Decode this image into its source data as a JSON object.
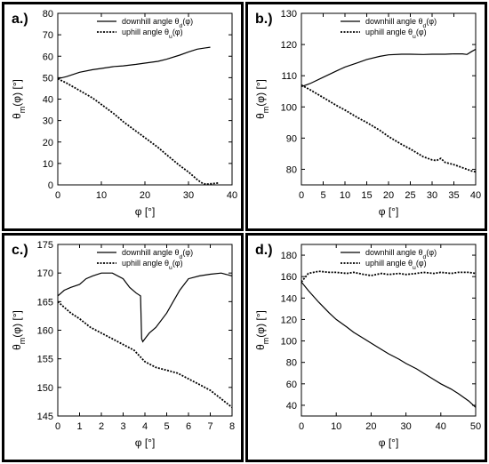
{
  "figure": {
    "background": "#ffffff"
  },
  "panels": [
    {
      "label": "a.)"
    },
    {
      "label": "b.)"
    },
    {
      "label": "c.)"
    },
    {
      "label": "d.)"
    }
  ],
  "chart_data": [
    {
      "type": "line",
      "panel": "a.)",
      "title": "",
      "xlabel": "φ [°]",
      "ylabel": "θm(φ) [°]",
      "xlim": [
        0,
        40
      ],
      "ylim": [
        0,
        80
      ],
      "xticks": [
        0,
        10,
        20,
        30,
        40
      ],
      "yticks": [
        0,
        10,
        20,
        30,
        40,
        50,
        60,
        70,
        80
      ],
      "legend": "top-right",
      "grid": false,
      "series": [
        {
          "name": "downhill angle θd(φ)",
          "style": "solid",
          "x": [
            0,
            2,
            5,
            8,
            10,
            13,
            15,
            18,
            20,
            23,
            25,
            28,
            30,
            32,
            34,
            35
          ],
          "y": [
            49.5,
            50.5,
            52.5,
            53.7,
            54.3,
            55.2,
            55.5,
            56.2,
            56.8,
            57.6,
            58.6,
            60.5,
            62.0,
            63.3,
            63.9,
            64.2
          ]
        },
        {
          "name": "uphill angle θu(φ)",
          "style": "dotted",
          "x": [
            0,
            2,
            5,
            8,
            10,
            13,
            15,
            18,
            20,
            23,
            25,
            28,
            30,
            32,
            33,
            34,
            35,
            37
          ],
          "y": [
            49.5,
            47.5,
            44.0,
            40.5,
            37.5,
            33.0,
            29.5,
            25.0,
            22.0,
            17.5,
            14.0,
            9.0,
            6.0,
            2.5,
            1.0,
            0.3,
            0.5,
            0.9
          ]
        }
      ]
    },
    {
      "type": "line",
      "panel": "b.)",
      "title": "",
      "xlabel": "φ [°]",
      "ylabel": "θm(φ) [°]",
      "xlim": [
        0,
        40
      ],
      "ylim": [
        75,
        130
      ],
      "xticks": [
        0,
        5,
        10,
        15,
        20,
        25,
        30,
        35,
        40
      ],
      "yticks": [
        80,
        90,
        100,
        110,
        120,
        130
      ],
      "legend": "top-right",
      "grid": false,
      "series": [
        {
          "name": "downhill angle θd(φ)",
          "style": "solid",
          "x": [
            0,
            2,
            5,
            8,
            10,
            13,
            15,
            18,
            20,
            23,
            25,
            28,
            30,
            33,
            35,
            37,
            38,
            39,
            40
          ],
          "y": [
            106.5,
            107.5,
            109.5,
            111.5,
            112.8,
            114.2,
            115.2,
            116.2,
            116.7,
            116.9,
            116.9,
            116.8,
            116.9,
            116.9,
            117.0,
            117.0,
            116.8,
            117.7,
            118.5
          ]
        },
        {
          "name": "uphill angle θu(φ)",
          "style": "dotted",
          "x": [
            0,
            2,
            5,
            8,
            10,
            13,
            15,
            18,
            20,
            23,
            25,
            28,
            30,
            31,
            32,
            33,
            35,
            37,
            39,
            40
          ],
          "y": [
            107.0,
            105.5,
            103.0,
            100.5,
            99.0,
            96.5,
            95.0,
            92.5,
            90.5,
            88.0,
            86.5,
            84.0,
            83.0,
            82.8,
            83.5,
            82.2,
            81.5,
            80.5,
            79.5,
            79.2
          ]
        }
      ]
    },
    {
      "type": "line",
      "panel": "c.)",
      "title": "",
      "xlabel": "φ [°]",
      "ylabel": "θm(φ) [°]",
      "xlim": [
        0,
        8
      ],
      "ylim": [
        145,
        175
      ],
      "xticks": [
        0,
        1,
        2,
        3,
        4,
        5,
        6,
        7,
        8
      ],
      "yticks": [
        145,
        150,
        155,
        160,
        165,
        170,
        175
      ],
      "legend": "top-right",
      "grid": false,
      "series": [
        {
          "name": "downhill angle θd(φ)",
          "style": "solid",
          "x": [
            0,
            0.3,
            0.6,
            1.0,
            1.3,
            1.6,
            2.0,
            2.5,
            3.0,
            3.3,
            3.6,
            3.8,
            3.85,
            3.9,
            4.0,
            4.2,
            4.5,
            5.0,
            5.3,
            5.6,
            6.0,
            6.5,
            7.0,
            7.5,
            8.0
          ],
          "y": [
            166.0,
            167.0,
            167.5,
            168.0,
            169.0,
            169.5,
            170.0,
            170.0,
            169.0,
            167.5,
            166.5,
            166.0,
            158.5,
            158.0,
            158.5,
            159.5,
            160.5,
            163.0,
            165.0,
            167.0,
            169.0,
            169.5,
            169.8,
            170.0,
            169.5
          ]
        },
        {
          "name": "uphill angle θu(φ)",
          "style": "dotted",
          "x": [
            0,
            0.3,
            0.6,
            1.0,
            1.5,
            2.0,
            2.5,
            3.0,
            3.5,
            4.0,
            4.5,
            5.0,
            5.5,
            6.0,
            6.5,
            7.0,
            7.5,
            8.0
          ],
          "y": [
            165.0,
            164.0,
            163.0,
            162.0,
            160.5,
            159.5,
            158.5,
            157.5,
            156.5,
            154.5,
            153.5,
            153.0,
            152.5,
            151.5,
            150.5,
            149.5,
            148.0,
            146.5
          ]
        }
      ]
    },
    {
      "type": "line",
      "panel": "d.)",
      "title": "",
      "xlabel": "φ [°]",
      "ylabel": "θm(φ) [°]",
      "xlim": [
        0,
        50
      ],
      "ylim": [
        30,
        190
      ],
      "xticks": [
        0,
        10,
        20,
        30,
        40,
        50
      ],
      "yticks": [
        40,
        60,
        80,
        100,
        120,
        140,
        160,
        180
      ],
      "legend": "top-right",
      "grid": false,
      "series": [
        {
          "name": "downhill angle θd(φ)",
          "style": "solid",
          "x": [
            0,
            2,
            5,
            8,
            10,
            13,
            15,
            18,
            20,
            23,
            25,
            28,
            30,
            33,
            35,
            38,
            40,
            43,
            45,
            48,
            50
          ],
          "y": [
            155,
            147,
            136,
            126,
            120,
            113,
            108,
            102,
            98,
            92,
            88,
            83,
            79,
            74,
            70,
            64,
            60,
            55,
            51,
            44,
            38
          ]
        },
        {
          "name": "uphill angle θu(φ)",
          "style": "dotted",
          "x": [
            0,
            2,
            5,
            8,
            10,
            13,
            15,
            18,
            20,
            23,
            25,
            28,
            30,
            33,
            35,
            38,
            40,
            43,
            45,
            48,
            50
          ],
          "y": [
            155,
            163,
            165,
            164,
            164,
            163,
            164,
            162,
            161,
            163,
            162,
            163,
            162,
            163,
            164,
            163,
            164,
            163,
            164,
            164,
            163
          ]
        }
      ]
    }
  ]
}
